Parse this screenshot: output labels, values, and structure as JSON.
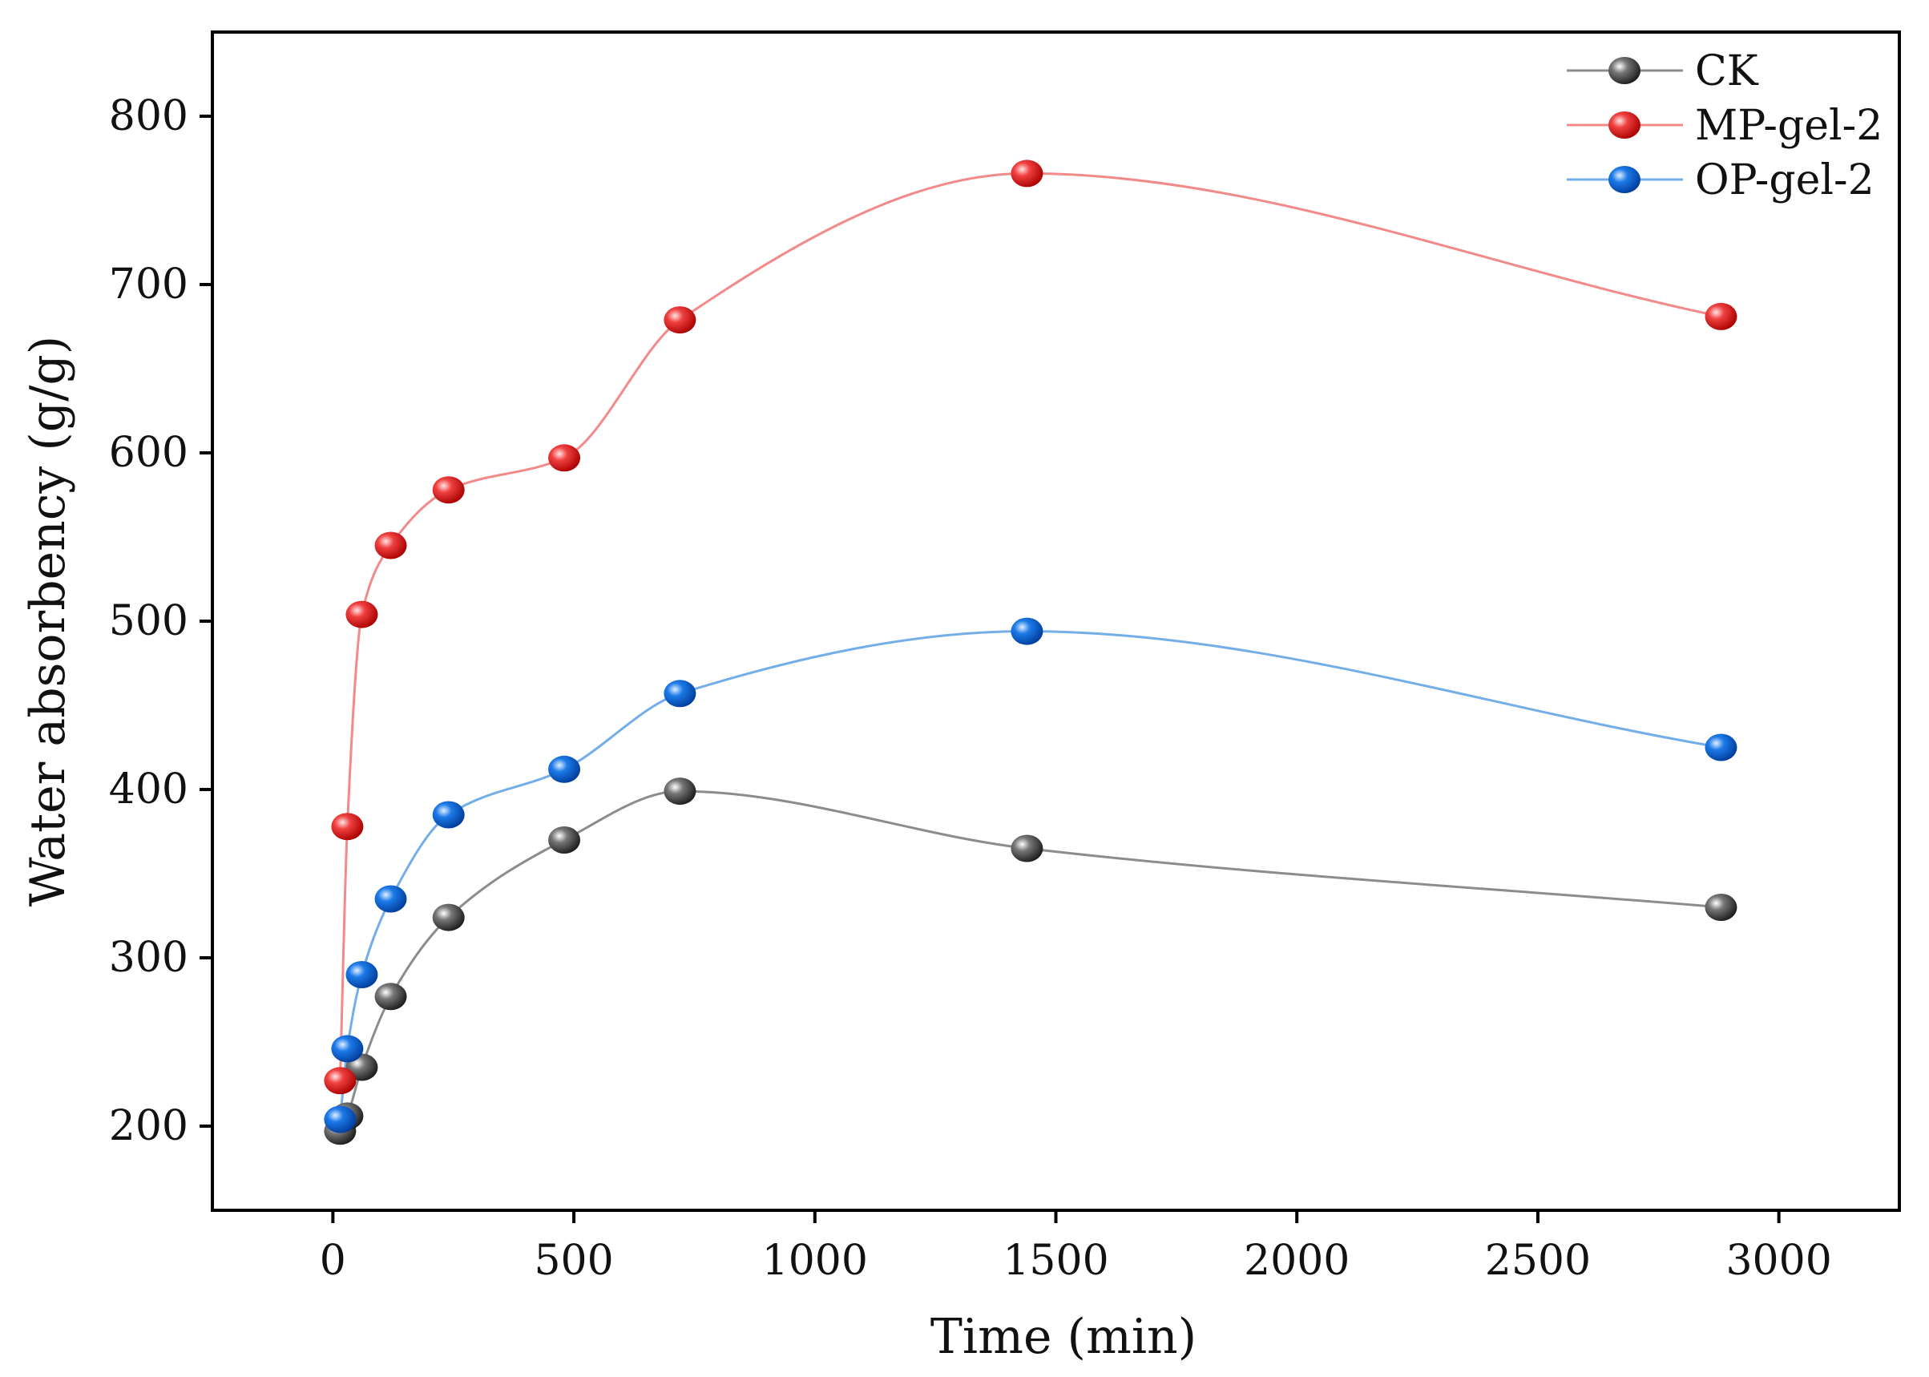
{
  "chart_data": {
    "type": "line",
    "title": "",
    "xlabel": "Time (min)",
    "ylabel": "Water absorbency (g/g)",
    "xlim": [
      -250,
      3250
    ],
    "ylim": [
      150,
      850
    ],
    "xticks": [
      0,
      500,
      1000,
      1500,
      2000,
      2500,
      3000
    ],
    "yticks": [
      200,
      300,
      400,
      500,
      600,
      700,
      800
    ],
    "xtick_labels": [
      "0",
      "500",
      "1000",
      "1500",
      "2000",
      "2500",
      "3000"
    ],
    "ytick_labels": [
      "200",
      "300",
      "400",
      "500",
      "600",
      "700",
      "800"
    ],
    "grid": false,
    "legend_position": "top-right",
    "series": [
      {
        "name": "CK",
        "color": "#4a4a4a",
        "line_color": "#8c8c8c",
        "x": [
          15,
          30,
          60,
          120,
          240,
          480,
          720,
          1440,
          2880
        ],
        "y": [
          197,
          206,
          235,
          277,
          324,
          370,
          399,
          365,
          330
        ]
      },
      {
        "name": "MP-gel-2",
        "color": "#ee3333",
        "line_color": "#f28a8a",
        "x": [
          15,
          30,
          60,
          120,
          240,
          480,
          720,
          1440,
          2880
        ],
        "y": [
          227,
          378,
          504,
          545,
          578,
          597,
          679,
          766,
          681
        ]
      },
      {
        "name": "OP-gel-2",
        "color": "#1a6fe0",
        "line_color": "#74aee8",
        "x": [
          15,
          30,
          60,
          120,
          240,
          480,
          720,
          1440,
          2880
        ],
        "y": [
          204,
          246,
          290,
          335,
          385,
          412,
          457,
          494,
          425
        ]
      }
    ]
  }
}
